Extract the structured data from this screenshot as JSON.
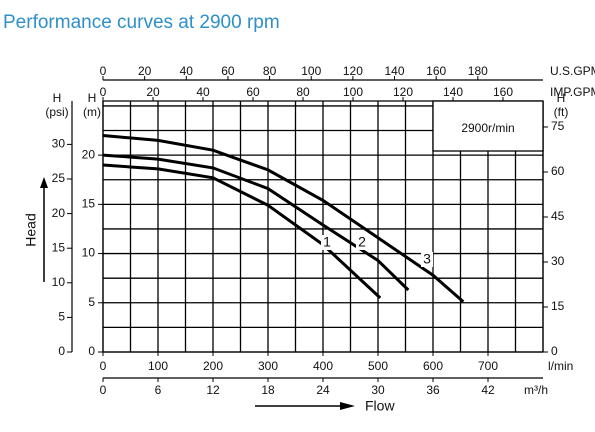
{
  "chart_data": {
    "type": "line",
    "title": "Performance curves at 2900 rpm",
    "speed_label": "2900r/min",
    "ylabel": "Head",
    "xlabel": "Flow",
    "xlim": [
      0,
      800
    ],
    "ylim": [
      0,
      25.5
    ],
    "xgrid": [
      0,
      50,
      100,
      150,
      200,
      250,
      300,
      350,
      400,
      450,
      500,
      550,
      600,
      650,
      700,
      750,
      800
    ],
    "ygrid": [
      0,
      2.5,
      5,
      7.5,
      10,
      12.5,
      15,
      17.5,
      20,
      22.5,
      25
    ],
    "x_axes": [
      {
        "label": "l/min",
        "lim": [
          0,
          800
        ],
        "ticks": [
          0,
          100,
          200,
          300,
          400,
          500,
          600,
          700
        ]
      },
      {
        "label": "m³/h",
        "lim": [
          0,
          48
        ],
        "ticks": [
          0,
          6,
          12,
          18,
          24,
          30,
          36,
          42
        ]
      },
      {
        "label": "U.S.GPM",
        "lim": [
          0,
          211.3
        ],
        "ticks": [
          0,
          20,
          40,
          60,
          80,
          100,
          120,
          140,
          160,
          180
        ]
      },
      {
        "label": "IMP.GPM",
        "lim": [
          0,
          176
        ],
        "ticks": [
          0,
          20,
          40,
          60,
          80,
          100,
          120,
          140,
          160
        ]
      }
    ],
    "y_axes": [
      {
        "label": "H",
        "unit": "(m)",
        "lim": [
          0,
          25.5
        ],
        "ticks": [
          0,
          5,
          10,
          15,
          20
        ]
      },
      {
        "label": "H",
        "unit": "(psi)",
        "lim": [
          0,
          36.27
        ],
        "ticks": [
          0,
          5,
          10,
          15,
          20,
          25,
          30
        ]
      },
      {
        "label": "H",
        "unit": "(ft)",
        "lim": [
          0,
          83.66
        ],
        "ticks": [
          0,
          15,
          30,
          45,
          60,
          75
        ]
      }
    ],
    "series": [
      {
        "name": "1",
        "color": "#000000",
        "x": [
          0,
          100,
          200,
          300,
          400,
          504
        ],
        "values": [
          19.0,
          18.6,
          17.7,
          14.9,
          10.9,
          5.5
        ]
      },
      {
        "name": "2",
        "color": "#000000",
        "x": [
          0,
          100,
          200,
          300,
          400,
          500,
          555
        ],
        "values": [
          20.0,
          19.6,
          18.7,
          16.6,
          12.9,
          9.3,
          6.3
        ]
      },
      {
        "name": "3",
        "color": "#000000",
        "x": [
          0,
          100,
          200,
          300,
          400,
          500,
          600,
          655
        ],
        "values": [
          22.0,
          21.5,
          20.5,
          18.5,
          15.4,
          11.6,
          7.8,
          5.1
        ]
      }
    ]
  }
}
